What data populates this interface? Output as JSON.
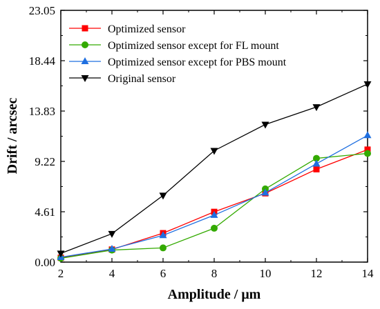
{
  "chart_data": {
    "type": "line",
    "title": "",
    "xlabel": "Amplitude / μm",
    "ylabel": "Drift / arcsec",
    "xlim": [
      2,
      14
    ],
    "ylim": [
      0.0,
      23.05
    ],
    "x_ticks": [
      "2",
      "4",
      "6",
      "8",
      "10",
      "12",
      "14"
    ],
    "y_ticks": [
      "0.00",
      "4.61",
      "9.22",
      "13.83",
      "18.44",
      "23.05"
    ],
    "x": [
      2,
      4,
      6,
      8,
      10,
      12,
      14
    ],
    "grid": false,
    "legend_position": "top-left",
    "series": [
      {
        "name": "Optimized sensor",
        "color": "#ff0000",
        "marker": "square",
        "values": [
          0.4,
          1.15,
          2.65,
          4.6,
          6.3,
          8.5,
          10.3
        ]
      },
      {
        "name": "Optimized sensor except for FL mount",
        "color": "#33aa00",
        "marker": "circle",
        "values": [
          0.35,
          1.1,
          1.3,
          3.1,
          6.7,
          9.5,
          9.95
        ]
      },
      {
        "name": "Optimized sensor except for PBS mount",
        "color": "#1f6fe0",
        "marker": "triangle-up",
        "values": [
          0.45,
          1.2,
          2.45,
          4.3,
          6.35,
          9.0,
          11.6
        ]
      },
      {
        "name": "Original sensor",
        "color": "#000000",
        "marker": "triangle-down",
        "values": [
          0.8,
          2.6,
          6.1,
          10.2,
          12.6,
          14.2,
          16.3
        ]
      }
    ]
  }
}
